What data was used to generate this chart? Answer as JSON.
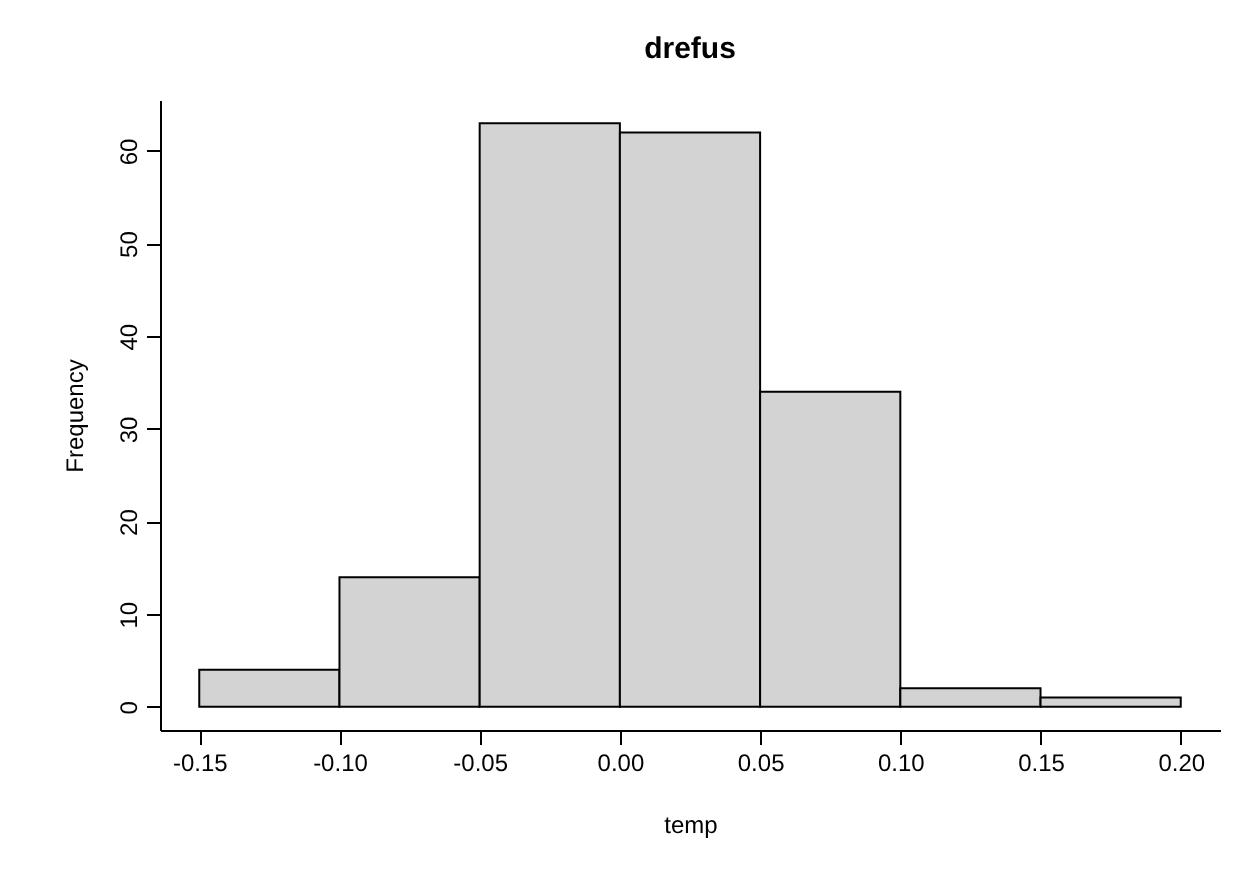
{
  "chart_data": {
    "type": "histogram",
    "title": "drefus",
    "xlabel": "temp",
    "ylabel": "Frequency",
    "bins": [
      -0.15,
      -0.1,
      -0.05,
      0,
      0.05,
      0.1,
      0.15,
      0.2
    ],
    "values": [
      4,
      14,
      63,
      62,
      34,
      2,
      1
    ],
    "color": "#d3d3d3",
    "xlim": [
      -0.164,
      0.214
    ],
    "ylim": [
      -2.5,
      65.5
    ],
    "xticks": [
      {
        "value": -0.15,
        "label": "-0.15"
      },
      {
        "value": -0.1,
        "label": "-0.10"
      },
      {
        "value": -0.05,
        "label": "-0.05"
      },
      {
        "value": 0,
        "label": "0.00"
      },
      {
        "value": 0.05,
        "label": "0.05"
      },
      {
        "value": 0.1,
        "label": "0.10"
      },
      {
        "value": 0.15,
        "label": "0.15"
      },
      {
        "value": 0.2,
        "label": "0.20"
      }
    ],
    "yticks": [
      0,
      10,
      20,
      30,
      40,
      50,
      60
    ],
    "grid": false
  }
}
